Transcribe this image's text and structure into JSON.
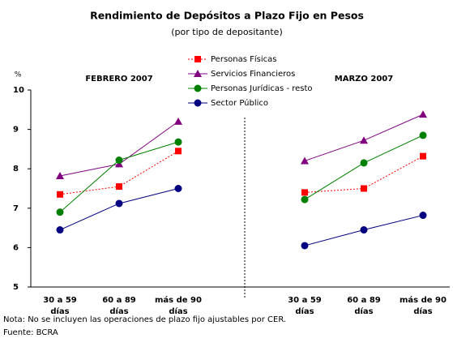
{
  "chart_data": {
    "type": "line",
    "title": "Rendimiento de Depósitos a Plazo Fijo en Pesos",
    "subtitle": "(por tipo de depositante)",
    "y_label": "%",
    "groups": [
      "FEBRERO 2007",
      "MARZO 2007"
    ],
    "categories": [
      "30 a 59 días",
      "60 a 89 días",
      "más de 90 días",
      "30 a 59 días",
      "60 a 89 días",
      "más de 90 días"
    ],
    "ylim": [
      5,
      10
    ],
    "yticks": [
      5,
      6,
      7,
      8,
      9,
      10
    ],
    "series": [
      {
        "name": "Personas Físicas",
        "color": "#ff0000",
        "marker": "square",
        "dash": true,
        "values": [
          7.35,
          7.55,
          8.45,
          7.4,
          7.5,
          8.32
        ]
      },
      {
        "name": "Servicios Financieros",
        "color": "#800080",
        "marker": "triangle",
        "values": [
          7.82,
          8.12,
          9.2,
          8.2,
          8.72,
          9.38
        ]
      },
      {
        "name": "Personas Jurídicas - resto",
        "color": "#008000",
        "marker": "circle",
        "values": [
          6.9,
          8.22,
          8.68,
          7.22,
          8.15,
          8.85
        ]
      },
      {
        "name": "Sector Público",
        "color": "#000080",
        "marker": "circle",
        "values": [
          6.45,
          7.12,
          7.5,
          6.05,
          6.45,
          6.82
        ]
      }
    ]
  },
  "notes": [
    "Nota: No se incluyen las operaciones de plazo fijo ajustables por CER.",
    "Fuente: BCRA"
  ]
}
